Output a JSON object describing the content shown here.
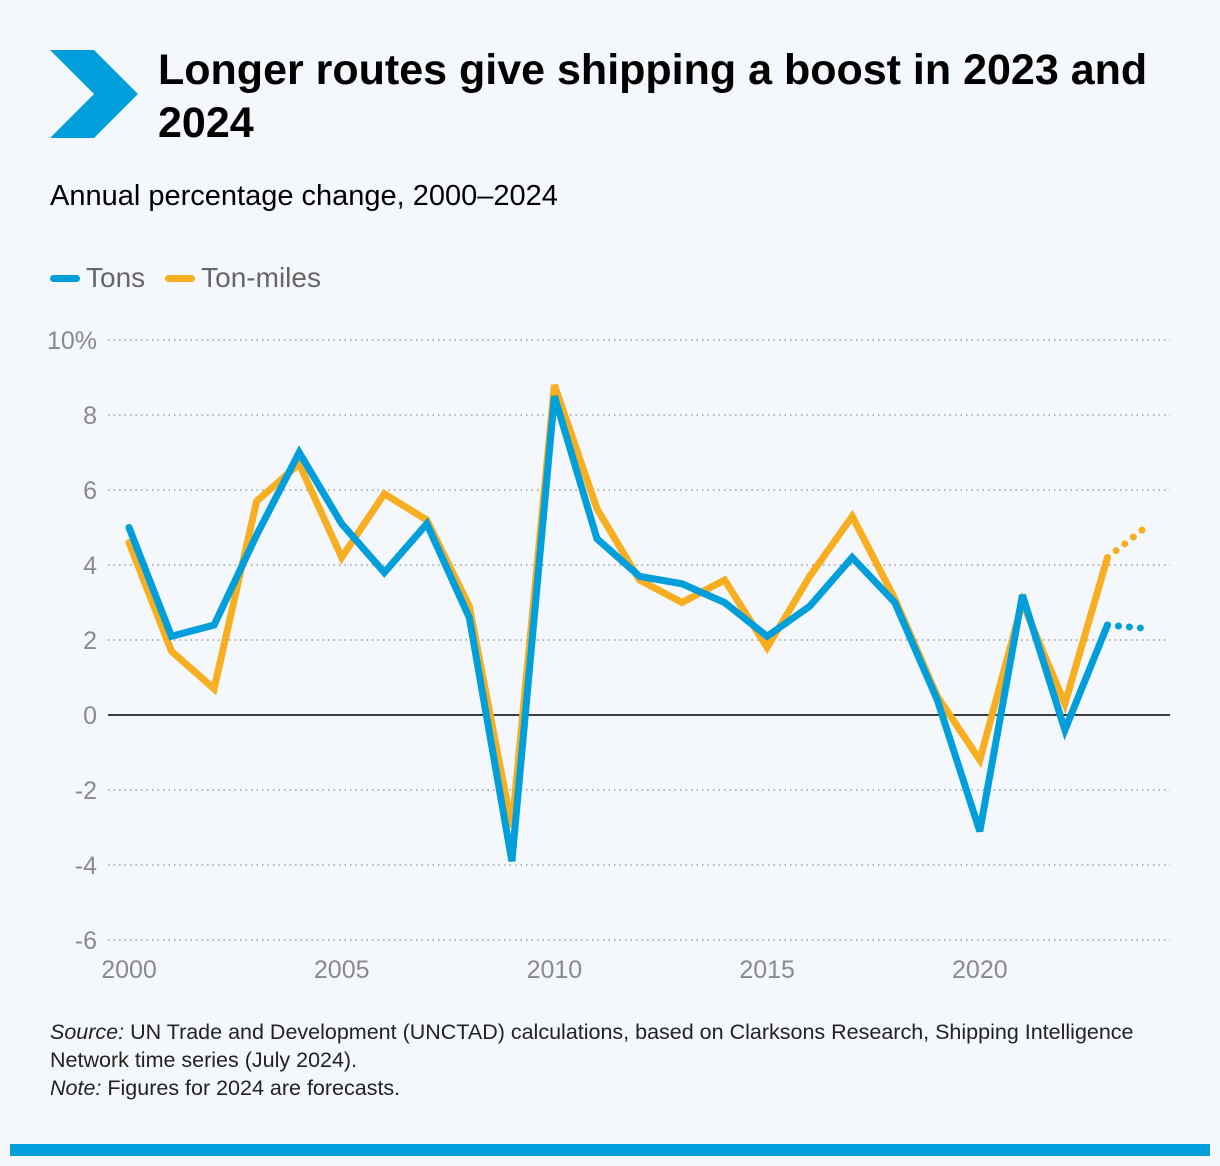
{
  "header": {
    "title": "Longer routes give shipping a boost in 2023 and 2024",
    "subtitle": "Annual percentage change, 2000–2024"
  },
  "footer": {
    "source_label": "Source:",
    "source_text": "UN Trade and Development (UNCTAD) calculations, based on Clarksons Research, Shipping Intelligence Network time series (July 2024).",
    "note_label": "Note:",
    "note_text": "Figures for 2024 are forecasts."
  },
  "colors": {
    "brand": "#009edb",
    "tons": "#009edb",
    "ton_miles": "#f8ae21"
  },
  "chart_data": {
    "type": "line",
    "x": [
      2000,
      2001,
      2002,
      2003,
      2004,
      2005,
      2006,
      2007,
      2008,
      2009,
      2010,
      2011,
      2012,
      2013,
      2014,
      2015,
      2016,
      2017,
      2018,
      2019,
      2020,
      2021,
      2022,
      2023,
      2024
    ],
    "series": [
      {
        "name": "Tons",
        "color": "#009edb",
        "values": [
          5.0,
          2.1,
          2.4,
          4.8,
          7.0,
          5.1,
          3.8,
          5.1,
          2.6,
          -3.9,
          8.5,
          4.7,
          3.7,
          3.5,
          3.0,
          2.1,
          2.9,
          4.2,
          3.0,
          0.4,
          -3.1,
          3.2,
          -0.4,
          2.4,
          2.3
        ],
        "forecast_from": 2023
      },
      {
        "name": "Ton-miles",
        "color": "#f8ae21",
        "values": [
          4.6,
          1.7,
          0.7,
          5.7,
          6.7,
          4.2,
          5.9,
          5.2,
          2.9,
          -3.0,
          8.8,
          5.5,
          3.6,
          3.0,
          3.6,
          1.8,
          3.7,
          5.3,
          3.1,
          0.5,
          -1.2,
          3.0,
          0.3,
          4.2,
          5.1
        ],
        "forecast_from": 2023
      }
    ],
    "ylim": [
      -6,
      10
    ],
    "y_ticks": [
      -6,
      -4,
      -2,
      0,
      2,
      4,
      6,
      8,
      10
    ],
    "y_tick_labels": [
      "-6",
      "-4",
      "-2",
      "0",
      "2",
      "4",
      "6",
      "8",
      "10%"
    ],
    "x_ticks": [
      2000,
      2005,
      2010,
      2015,
      2020
    ],
    "x_tick_labels": [
      "2000",
      "2005",
      "2010",
      "2015",
      "2020"
    ],
    "grid": true,
    "legend_position": "top-left"
  }
}
